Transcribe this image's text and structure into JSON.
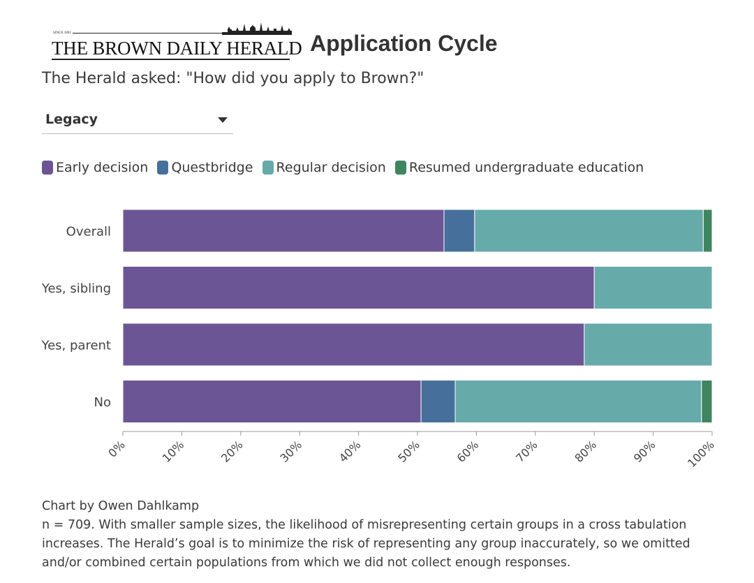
{
  "header": {
    "logo": {
      "since": "SINCE 1891",
      "name": "THE BROWN DAILY HERALD"
    },
    "title": "Application Cycle"
  },
  "subtitle": "The Herald asked: \"How did you apply to Brown?\"",
  "filter": {
    "selected": "Legacy"
  },
  "colors": {
    "early_decision": "#6b5595",
    "questbridge": "#46709b",
    "regular_decision": "#66aaaa",
    "resumed": "#3f855f"
  },
  "chart_data": {
    "type": "bar",
    "orientation": "horizontal",
    "stacked": true,
    "normalized": true,
    "categories": [
      "Overall",
      "Yes, sibling",
      "Yes, parent",
      "No"
    ],
    "series": [
      {
        "name": "Early decision",
        "color": "#6b5595",
        "values": [
          54.5,
          80.0,
          78.3,
          50.6
        ]
      },
      {
        "name": "Questbridge",
        "color": "#46709b",
        "values": [
          5.2,
          0.0,
          0.0,
          5.8
        ]
      },
      {
        "name": "Regular decision",
        "color": "#66aaaa",
        "values": [
          38.8,
          20.0,
          21.7,
          41.8
        ]
      },
      {
        "name": "Resumed undergraduate education",
        "color": "#3f855f",
        "values": [
          1.5,
          0.0,
          0.0,
          1.8
        ]
      }
    ],
    "xlim": [
      0,
      100
    ],
    "x_ticks": [
      "0%",
      "10%",
      "20%",
      "30%",
      "40%",
      "50%",
      "60%",
      "70%",
      "80%",
      "90%",
      "100%"
    ],
    "legend_position": "top-left"
  },
  "footer": {
    "credit": "Chart by Owen Dahlkamp",
    "note_lines": [
      "n = 709. With smaller sample sizes, the likelihood of misrepresenting certain groups in a cross tabulation",
      "increases. The Herald’s goal is to minimize the risk of representing any group inaccurately, so we omitted",
      "and/or combined certain populations from which we did not collect enough responses."
    ]
  }
}
